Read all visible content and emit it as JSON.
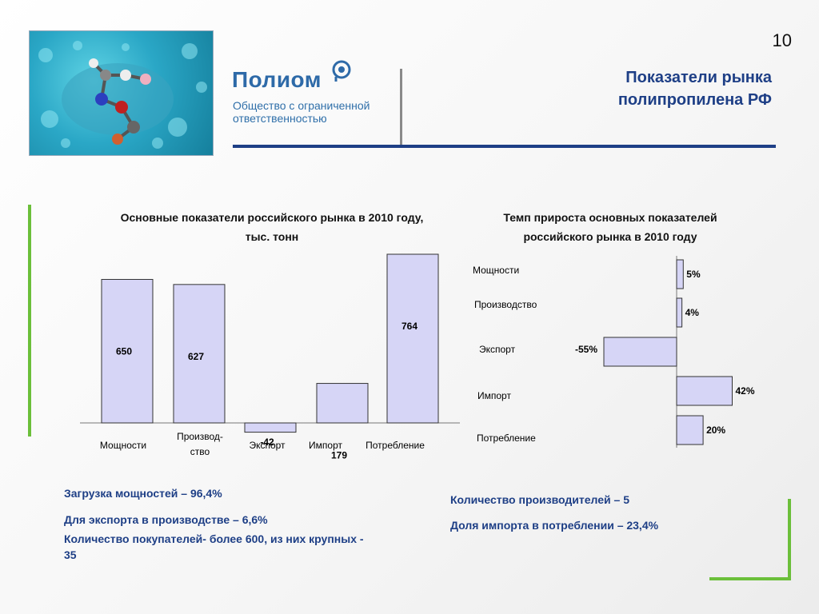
{
  "header": {
    "page_number": "10",
    "title": "Показатели рынка полипропилена РФ",
    "logo_name": "Полиом",
    "logo_sub": "Общество с ограниченной ответственностью"
  },
  "colors": {
    "bar_fill": "#d6d5f6",
    "accent_blue": "#1e3f86",
    "logo_blue": "#2e6aa8",
    "green": "#6bbf3a"
  },
  "chart_data": [
    {
      "type": "bar",
      "title": "Основные показатели российского рынка в 2010 году, тыс. тонн",
      "categories": [
        "Мощности",
        "Производ-ство",
        "Экспорт",
        "Импорт",
        "Потребление"
      ],
      "values": [
        650,
        627,
        -42,
        179,
        764
      ],
      "data_labels": [
        "650",
        "627",
        "-42",
        "179",
        "764"
      ],
      "ylim": [
        -60,
        800
      ],
      "grid": false,
      "legend": "none"
    },
    {
      "type": "bar",
      "orientation": "horizontal",
      "title": "Темп прироста основных показателей российского рынка в 2010 году",
      "categories": [
        "Мощности",
        "Производство",
        "Экспорт",
        "Импорт",
        "Потребление"
      ],
      "values": [
        5,
        4,
        -55,
        42,
        20
      ],
      "data_labels": [
        "5%",
        "4%",
        "-55%",
        "42%",
        "20%"
      ],
      "xlim": [
        -60,
        50
      ],
      "grid": false,
      "legend": "none"
    }
  ],
  "facts_left": [
    "Загрузка мощностей – 96,4%",
    "Для экспорта в производстве – 6,6%",
    "Количество покупателей- более 600, из них крупных - 35"
  ],
  "facts_right": [
    "Количество производителей – 5",
    "Доля импорта в потреблении – 23,4%"
  ]
}
